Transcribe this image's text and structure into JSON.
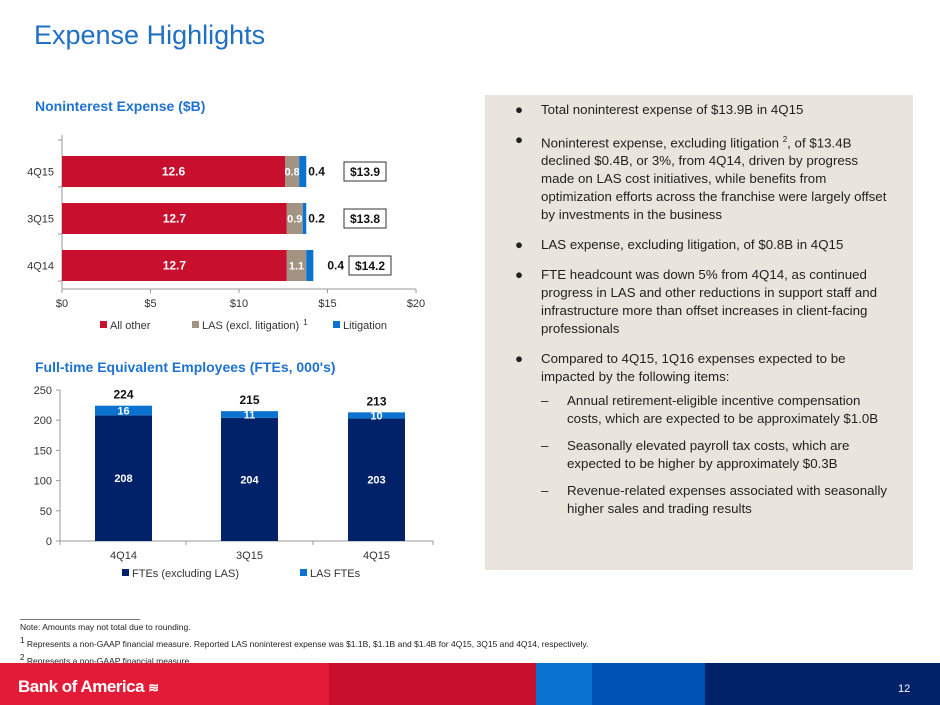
{
  "title": "Expense Highlights",
  "chart_data": [
    {
      "type": "bar",
      "orientation": "horizontal",
      "stacked": true,
      "title": "Noninterest Expense ($B)",
      "categories": [
        "4Q15",
        "3Q15",
        "4Q14"
      ],
      "series": [
        {
          "name": "All other",
          "values": [
            12.6,
            12.7,
            12.7
          ],
          "color": "#c8102e"
        },
        {
          "name": "LAS (excl. litigation)",
          "name_sup": "1",
          "values": [
            0.8,
            0.9,
            1.1
          ],
          "color": "#a39382"
        },
        {
          "name": "Litigation",
          "values": [
            0.4,
            0.2,
            0.4
          ],
          "color": "#0a72cf"
        }
      ],
      "totals": [
        "$13.9",
        "$13.8",
        "$14.2"
      ],
      "xlim": [
        0,
        20
      ],
      "xticks": [
        "$0",
        "$5",
        "$10",
        "$15",
        "$20"
      ],
      "legend": "bottom"
    },
    {
      "type": "bar",
      "stacked": true,
      "title": "Full-time Equivalent Employees (FTEs, 000's)",
      "categories": [
        "4Q14",
        "3Q15",
        "4Q15"
      ],
      "series": [
        {
          "name": "FTEs (excluding LAS)",
          "values": [
            208,
            204,
            203
          ],
          "color": "#012169"
        },
        {
          "name": "LAS FTEs",
          "values": [
            16,
            11,
            10
          ],
          "color": "#0a72cf"
        }
      ],
      "totals": [
        "224",
        "215",
        "213"
      ],
      "ylim": [
        0,
        250
      ],
      "yticks": [
        "0",
        "50",
        "100",
        "150",
        "200",
        "250"
      ],
      "legend": "bottom"
    }
  ],
  "panel": {
    "bullets": [
      {
        "text": "Total noninterest expense of $13.9B in 4Q15"
      },
      {
        "text_a": "Noninterest expense, excluding litigation ",
        "sup": "2",
        "text_b": ", of $13.4B declined $0.4B, or 3%, from 4Q14, driven by progress made on LAS cost initiatives, while benefits from optimization efforts across the franchise were largely offset by investments in the business"
      },
      {
        "text": "LAS expense, excluding litigation, of $0.8B in 4Q15"
      },
      {
        "text": "FTE headcount was down 5% from 4Q14, as continued progress in LAS and other reductions in support staff and infrastructure more than offset increases in client-facing professionals"
      },
      {
        "text": "Compared to 4Q15, 1Q16 expenses expected to be impacted by the following items:"
      }
    ],
    "subs": [
      "Annual retirement-eligible incentive compensation costs, which are expected to be approximately $1.0B",
      "Seasonally elevated payroll tax costs, which are expected to be higher by approximately $0.3B",
      "Revenue-related expenses associated with seasonally higher sales and trading results"
    ]
  },
  "notes": [
    "Note: Amounts may not total due to rounding.",
    "Represents a non-GAAP financial measure. Reported LAS noninterest expense was $1.1B, $1.1B and $1.4B for 4Q15, 3Q15 and 4Q14, respectively.",
    "Represents a non-GAAP financial measure."
  ],
  "note_sups": [
    "1",
    "2"
  ],
  "footer": {
    "logo": "Bank of America",
    "page": "12"
  }
}
